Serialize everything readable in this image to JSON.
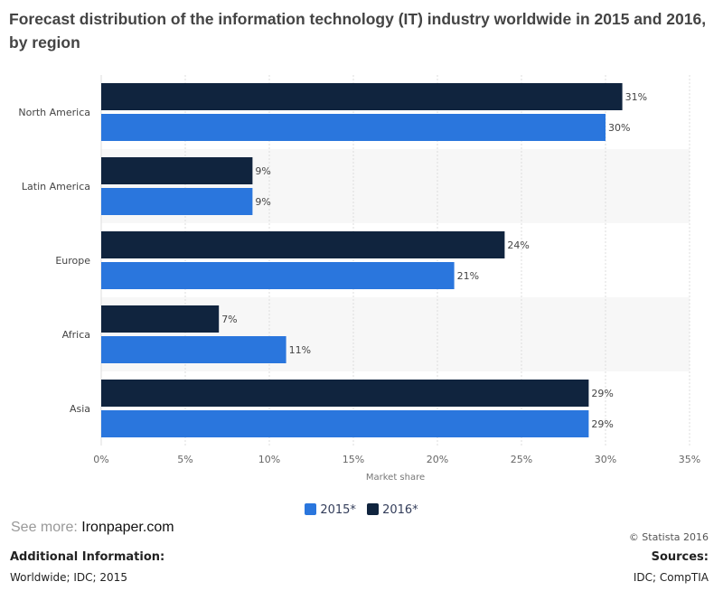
{
  "title": "Forecast distribution of the information technology (IT) industry worldwide in 2015 and 2016, by region",
  "chart_data": {
    "type": "bar",
    "orientation": "horizontal",
    "categories": [
      "North America",
      "Latin America",
      "Europe",
      "Africa",
      "Asia"
    ],
    "series": [
      {
        "name": "2016*",
        "color": "#10243e",
        "values": [
          31,
          9,
          24,
          7,
          29
        ]
      },
      {
        "name": "2015*",
        "color": "#2a76dd",
        "values": [
          30,
          9,
          21,
          11,
          29
        ]
      }
    ],
    "xlabel": "Market share",
    "xlim": [
      0,
      35
    ],
    "xticks": [
      "0%",
      "5%",
      "10%",
      "15%",
      "20%",
      "25%",
      "30%",
      "35%"
    ],
    "value_suffix": "%",
    "grid": true,
    "legend": "bottom"
  },
  "legend": [
    {
      "label": "2015*",
      "color": "#2a76dd"
    },
    {
      "label": "2016*",
      "color": "#10243e"
    }
  ],
  "see_more": {
    "prefix": "See more:",
    "link": "Ironpaper.com"
  },
  "copyright": "© Statista 2016",
  "additional": {
    "heading": "Additional Information:",
    "text": "Worldwide; IDC; 2015"
  },
  "sources": {
    "heading": "Sources:",
    "text": "IDC; CompTIA"
  }
}
